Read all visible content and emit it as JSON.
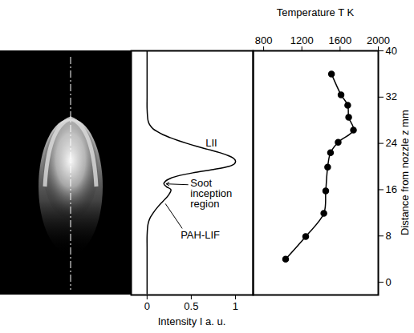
{
  "chart_data": [
    {
      "type": "line",
      "x_label": "Intensity I a. u.",
      "x": [
        0,
        0,
        0,
        0,
        0,
        0,
        0.01,
        0.03,
        0.07,
        0.12,
        0.18,
        0.24,
        0.27,
        0.22,
        0.19,
        0.21,
        0.27,
        0.38,
        0.55,
        0.75,
        0.92,
        0.99,
        1.0,
        0.97,
        0.9,
        0.8,
        0.68,
        0.56,
        0.45,
        0.35,
        0.26,
        0.18,
        0.12,
        0.07,
        0.04,
        0.02,
        0.01,
        0,
        0,
        0,
        0,
        0,
        0
      ],
      "y": [
        -2,
        0,
        2,
        4,
        6,
        8,
        10,
        11,
        12,
        13,
        14,
        15,
        16,
        16.5,
        17,
        17.5,
        18,
        18.5,
        19,
        19.5,
        20,
        20.5,
        21,
        21.5,
        22,
        22.5,
        23,
        23.5,
        24,
        24.5,
        25,
        25.5,
        26,
        26.5,
        27,
        27.5,
        28,
        30,
        32,
        34,
        36,
        38,
        40
      ],
      "xlim": [
        -0.18,
        1.2
      ],
      "xticks": [
        0,
        0.5,
        1
      ],
      "ylim": [
        -2.2,
        40
      ],
      "tick_labels": "x",
      "color": "#000000",
      "annotations": [
        "LII",
        "Soot inception region",
        "PAH-LIF"
      ]
    },
    {
      "type": "line",
      "marker": "circle",
      "x_label": "Temperature T K",
      "y_label": "Distance from nozzle z mm",
      "x": [
        1030,
        1240,
        1430,
        1450,
        1470,
        1500,
        1580,
        1740,
        1690,
        1680,
        1610,
        1510
      ],
      "y": [
        4.0,
        7.9,
        11.9,
        15.8,
        19.9,
        22.4,
        24.2,
        26.3,
        28.5,
        30.6,
        32.4,
        36.0
      ],
      "xlim": [
        690,
        2000
      ],
      "xticks": [
        800,
        1200,
        1600,
        2000
      ],
      "ylim": [
        -2.2,
        40
      ],
      "yticks": [
        0,
        8,
        16,
        24,
        32,
        40
      ],
      "color": "#000000"
    }
  ]
}
